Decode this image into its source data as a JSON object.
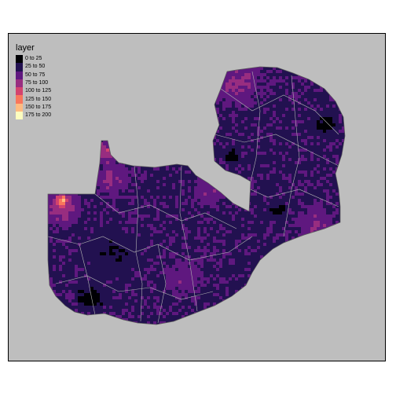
{
  "legend": {
    "title": "layer",
    "items": [
      {
        "label": "0 to 25",
        "color": "#000004"
      },
      {
        "label": "25 to 50",
        "color": "#221150"
      },
      {
        "label": "50 to 75",
        "color": "#5f187f"
      },
      {
        "label": "75 to 100",
        "color": "#982d80"
      },
      {
        "label": "100 to 125",
        "color": "#d3436e"
      },
      {
        "label": "125 to 150",
        "color": "#f8765c"
      },
      {
        "label": "150 to 175",
        "color": "#febb81"
      },
      {
        "label": "175 to 200",
        "color": "#fcfdbf"
      }
    ]
  },
  "colors": {
    "background": "#bebebe",
    "boundary": "#b3b3b3"
  }
}
